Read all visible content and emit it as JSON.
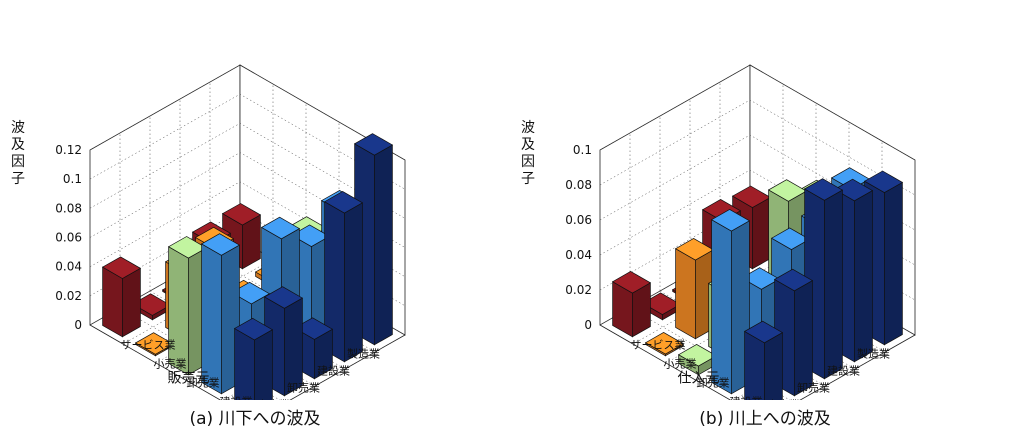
{
  "chart_data": [
    {
      "type": "bar3d",
      "caption": "(a) 川下への波及",
      "zlabel": "波及因子",
      "row_axis_label": "販売先",
      "col_axis_label": "販売元",
      "row_categories": [
        "製造業",
        "建設業",
        "卸売業",
        "小売業",
        "サービス業"
      ],
      "col_categories": [
        "サービス業",
        "小売業",
        "卸売業",
        "建設業",
        "製造業"
      ],
      "zlim": [
        0,
        0.12
      ],
      "zticks": [
        "0",
        "0.02",
        "0.04",
        "0.06",
        "0.08",
        "0.1",
        "0.12"
      ],
      "series_colors": [
        "#8b1a22",
        "#f08a24",
        "#a9d48b",
        "#3a8ad6",
        "#16307a"
      ],
      "values": [
        [
          0.03,
          0.003,
          0.047,
          0.078,
          0.13
        ],
        [
          0.029,
          0.002,
          0.003,
          0.066,
          0.102
        ],
        [
          0.001,
          0.05,
          0.001,
          0.083,
          0.027
        ],
        [
          0.003,
          0.045,
          0.036,
          0.05,
          0.06
        ],
        [
          0.04,
          0.001,
          0.08,
          0.095,
          0.05
        ]
      ],
      "grid": true
    },
    {
      "type": "bar3d",
      "caption": "(b) 川上への波及",
      "zlabel": "波及因子",
      "row_axis_label": "仕入先",
      "col_axis_label": "仕入元",
      "row_categories": [
        "製造業",
        "建設業",
        "卸売業",
        "小売業",
        "サービス業"
      ],
      "col_categories": [
        "サービス業",
        "小売業",
        "卸売業",
        "建設業",
        "製造業"
      ],
      "zlim": [
        0,
        0.1
      ],
      "zticks": [
        "0",
        "0.02",
        "0.04",
        "0.06",
        "0.08",
        "0.1"
      ],
      "series_colors": [
        "#8b1a22",
        "#f08a24",
        "#a9d48b",
        "#3a8ad6",
        "#16307a"
      ],
      "values": [
        [
          0.035,
          0.001,
          0.06,
          0.078,
          0.087
        ],
        [
          0.037,
          0.003,
          0.07,
          0.066,
          0.092
        ],
        [
          0.001,
          0.003,
          0.001,
          0.063,
          0.102
        ],
        [
          0.003,
          0.045,
          0.036,
          0.05,
          0.06
        ],
        [
          0.025,
          0.001,
          0.005,
          0.093,
          0.04
        ]
      ],
      "grid": true
    }
  ]
}
